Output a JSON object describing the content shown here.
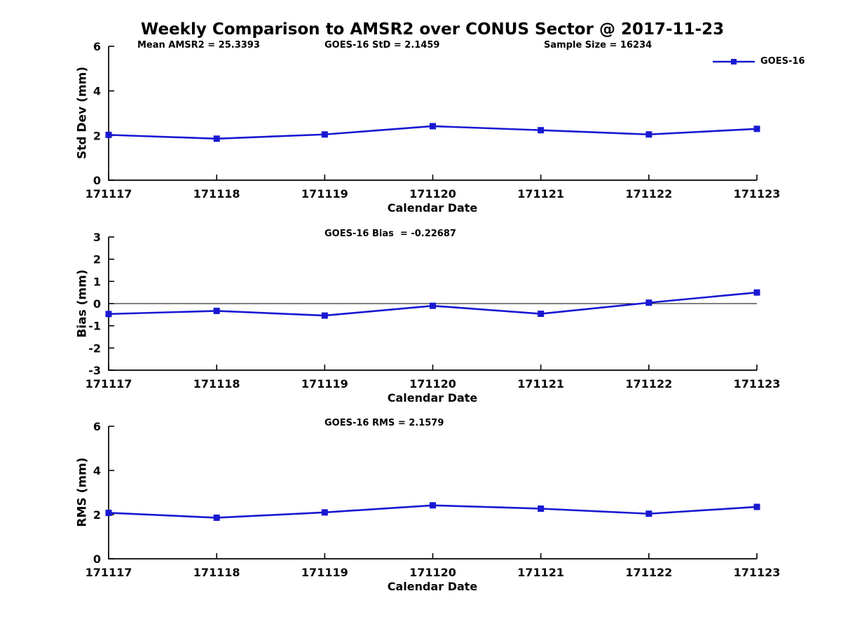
{
  "figure_title": "Weekly Comparison to AMSR2 over CONUS Sector @ 2017-11-23",
  "colors": {
    "line": "#1818d2",
    "axis": "#000000",
    "zero_line": "#000000"
  },
  "chart_data": [
    {
      "type": "line",
      "title": "",
      "annotations": [
        "Mean AMSR2 = 25.3393",
        "GOES-16 StD = 2.1459",
        "Sample Size = 16234"
      ],
      "categories": [
        "171117",
        "171118",
        "171119",
        "171120",
        "171121",
        "171122",
        "171123"
      ],
      "series": [
        {
          "name": "GOES-16",
          "values": [
            2.03,
            1.86,
            2.05,
            2.42,
            2.24,
            2.05,
            2.3
          ]
        }
      ],
      "xlabel": "Calendar Date",
      "ylabel": "Std Dev (mm)",
      "ylim": [
        0,
        6
      ],
      "yticks": [
        0,
        2,
        4,
        6
      ],
      "zero_line": false,
      "grid": false,
      "legend_position": "top-right",
      "marker": "square"
    },
    {
      "type": "line",
      "title": "GOES-16 Bias  = -0.22687",
      "categories": [
        "171117",
        "171118",
        "171119",
        "171120",
        "171121",
        "171122",
        "171123"
      ],
      "series": [
        {
          "name": "GOES-16",
          "values": [
            -0.47,
            -0.33,
            -0.54,
            -0.1,
            -0.46,
            0.04,
            0.5
          ]
        }
      ],
      "xlabel": "Calendar Date",
      "ylabel": "Bias (mm)",
      "ylim": [
        -3,
        3
      ],
      "yticks": [
        -3,
        -2,
        -1,
        0,
        1,
        2,
        3
      ],
      "zero_line": true,
      "grid": false,
      "marker": "square"
    },
    {
      "type": "line",
      "title": "GOES-16 RMS = 2.1579",
      "categories": [
        "171117",
        "171118",
        "171119",
        "171120",
        "171121",
        "171122",
        "171123"
      ],
      "series": [
        {
          "name": "GOES-16",
          "values": [
            2.08,
            1.86,
            2.1,
            2.42,
            2.27,
            2.04,
            2.35
          ]
        }
      ],
      "xlabel": "Calendar Date",
      "ylabel": "RMS (mm)",
      "ylim": [
        0,
        6
      ],
      "yticks": [
        0,
        2,
        4,
        6
      ],
      "zero_line": false,
      "grid": false,
      "marker": "square"
    }
  ]
}
